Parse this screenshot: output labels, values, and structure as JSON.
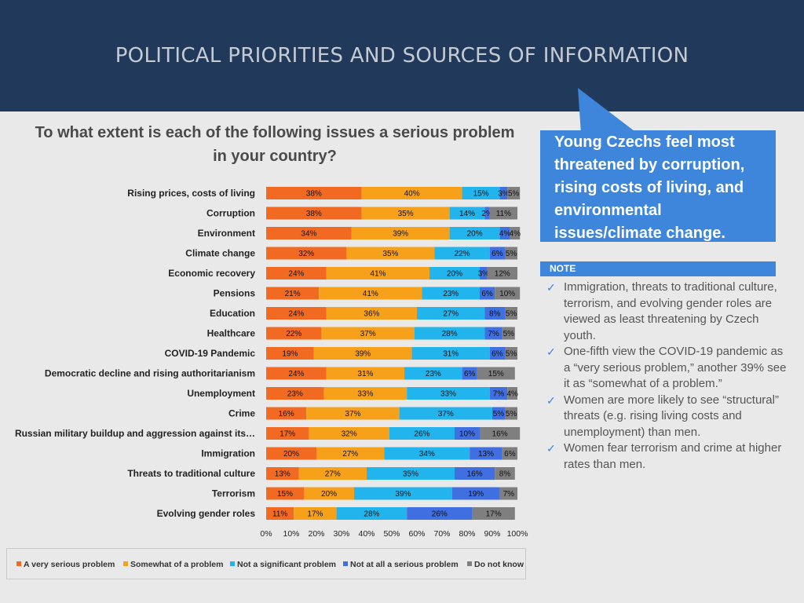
{
  "header": {
    "title": "POLITICAL PRIORITIES AND SOURCES OF INFORMATION"
  },
  "question": "To what extent is each of the following issues a serious problem in your country?",
  "callout": {
    "text": "Young Czechs feel most threatened by corruption, rising costs of living, and environmental issues/climate change."
  },
  "note": {
    "label": "NOTE",
    "items": [
      "Immigration, threats to traditional culture, terrorism, and evolving gender roles are viewed as least threatening by Czech youth.",
      "One-fifth view the COVID-19 pandemic as a “very serious problem,” another 39% see it as “somewhat of a problem.”",
      "Women are more likely to see “structural” threats (e.g. rising living costs and unemployment) than men.",
      "Women fear terrorism and crime at higher rates than men."
    ]
  },
  "chart_data": {
    "type": "bar",
    "orientation": "horizontal",
    "stacked": true,
    "percent_stacked": true,
    "categories": [
      "Rising prices, costs of living",
      "Corruption",
      "Environment",
      "Climate change",
      "Economic recovery",
      "Pensions",
      "Education",
      "Healthcare",
      "COVID-19 Pandemic",
      "Democratic decline and rising authoritarianism",
      "Unemployment",
      "Crime",
      "Russian military buildup and aggression against its…",
      "Immigration",
      "Threats to traditional culture",
      "Terrorism",
      "Evolving gender roles"
    ],
    "series": [
      {
        "name": "A very serious problem",
        "color": "#f26a21",
        "values": [
          38,
          38,
          34,
          32,
          24,
          21,
          24,
          22,
          19,
          24,
          23,
          16,
          17,
          20,
          13,
          15,
          11
        ]
      },
      {
        "name": "Somewhat of a problem",
        "color": "#f7a11a",
        "values": [
          40,
          35,
          39,
          35,
          41,
          41,
          36,
          37,
          39,
          31,
          33,
          37,
          32,
          27,
          27,
          20,
          17
        ]
      },
      {
        "name": "Not a significant problem",
        "color": "#22b5ed",
        "values": [
          15,
          14,
          20,
          22,
          20,
          23,
          27,
          28,
          31,
          23,
          33,
          37,
          26,
          34,
          35,
          39,
          28
        ]
      },
      {
        "name": "Not at all a serious problem",
        "color": "#3f6fe0",
        "values": [
          3,
          2,
          4,
          6,
          3,
          6,
          8,
          7,
          6,
          6,
          7,
          5,
          10,
          13,
          16,
          19,
          26
        ]
      },
      {
        "name": "Do not know",
        "color": "#7f7f7f",
        "values": [
          5,
          11,
          4,
          5,
          12,
          10,
          5,
          5,
          5,
          15,
          4,
          5,
          16,
          6,
          8,
          7,
          17
        ]
      }
    ],
    "xlim": [
      0,
      100
    ],
    "xticks": [
      "0%",
      "10%",
      "20%",
      "30%",
      "40%",
      "50%",
      "60%",
      "70%",
      "80%",
      "90%",
      "100%"
    ],
    "legend_position": "bottom"
  }
}
